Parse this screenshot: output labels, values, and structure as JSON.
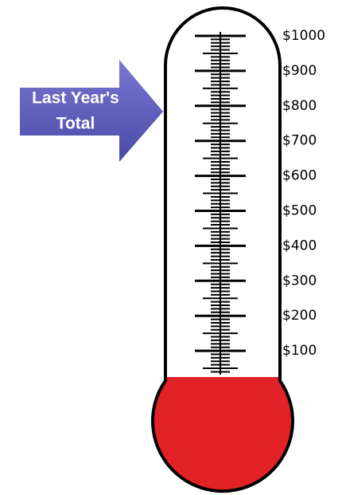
{
  "arrow": {
    "lines": [
      "Last Year's",
      "Total"
    ]
  },
  "scale": {
    "labels": [
      "$1000",
      "$900",
      "$800",
      "$700",
      "$600",
      "$500",
      "$400",
      "$300",
      "$200",
      "$100"
    ]
  }
}
